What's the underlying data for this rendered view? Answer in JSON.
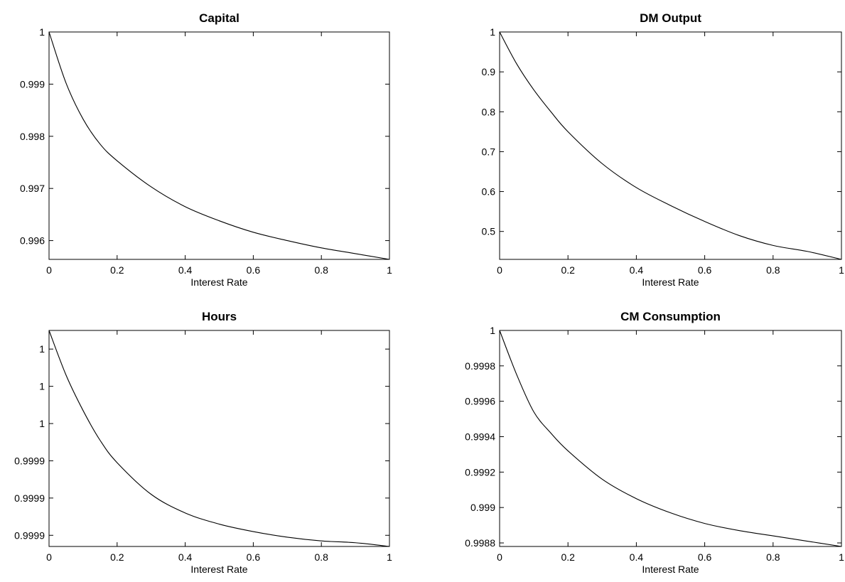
{
  "chart_data": [
    {
      "type": "line",
      "title": "Capital",
      "xlabel": "Interest Rate",
      "ylabel": "",
      "xlim": [
        0,
        1
      ],
      "ylim": [
        0.99564,
        1.0
      ],
      "xticks": [
        0,
        0.2,
        0.4,
        0.6,
        0.8,
        1
      ],
      "xticklabels": [
        "0",
        "0.2",
        "0.4",
        "0.6",
        "0.8",
        "1"
      ],
      "yticks": [
        0.996,
        0.997,
        0.998,
        0.999,
        1.0
      ],
      "yticklabels": [
        "0.996",
        "0.997",
        "0.998",
        "0.999",
        "1"
      ],
      "grid": false,
      "series": [
        {
          "x": [
            0,
            0.05,
            0.1,
            0.15,
            0.2,
            0.3,
            0.4,
            0.5,
            0.6,
            0.7,
            0.8,
            0.9,
            1.0
          ],
          "y": [
            1.0,
            0.99902,
            0.99833,
            0.99785,
            0.99753,
            0.99703,
            0.99665,
            0.99638,
            0.99616,
            0.996,
            0.99586,
            0.99575,
            0.99564
          ]
        }
      ]
    },
    {
      "type": "line",
      "title": "DM Output",
      "xlabel": "Interest Rate",
      "ylabel": "",
      "xlim": [
        0,
        1
      ],
      "ylim": [
        0.43,
        1.0
      ],
      "xticks": [
        0,
        0.2,
        0.4,
        0.6,
        0.8,
        1
      ],
      "xticklabels": [
        "0",
        "0.2",
        "0.4",
        "0.6",
        "0.8",
        "1"
      ],
      "yticks": [
        0.5,
        0.6,
        0.7,
        0.8,
        0.9,
        1.0
      ],
      "yticklabels": [
        "0.5",
        "0.6",
        "0.7",
        "0.8",
        "0.9",
        "1"
      ],
      "grid": false,
      "series": [
        {
          "x": [
            0,
            0.05,
            0.1,
            0.15,
            0.2,
            0.3,
            0.4,
            0.5,
            0.6,
            0.7,
            0.8,
            0.9,
            1.0
          ],
          "y": [
            1.0,
            0.92,
            0.855,
            0.8,
            0.75,
            0.67,
            0.61,
            0.565,
            0.525,
            0.49,
            0.465,
            0.45,
            0.43
          ]
        }
      ]
    },
    {
      "type": "line",
      "title": "Hours",
      "xlabel": "Interest Rate",
      "ylabel": "",
      "xlim": [
        0,
        1
      ],
      "ylim": [
        0.999884,
        1.0
      ],
      "xticks": [
        0,
        0.2,
        0.4,
        0.6,
        0.8,
        1
      ],
      "xticklabels": [
        "0",
        "0.2",
        "0.4",
        "0.6",
        "0.8",
        "1"
      ],
      "yticks": [
        0.99989,
        0.99991,
        0.99993,
        0.99995,
        0.99997,
        0.99999
      ],
      "yticklabels": [
        "0.9999",
        "0.9999",
        "0.9999",
        "1",
        "1",
        "1"
      ],
      "grid": false,
      "series": [
        {
          "x": [
            0,
            0.05,
            0.1,
            0.15,
            0.2,
            0.3,
            0.4,
            0.5,
            0.6,
            0.7,
            0.8,
            0.9,
            1.0
          ],
          "y": [
            1.0,
            0.999976,
            0.999957,
            0.999941,
            0.999929,
            0.999912,
            0.999902,
            0.999896,
            0.999892,
            0.999889,
            0.999887,
            0.999886,
            0.999884
          ]
        }
      ]
    },
    {
      "type": "line",
      "title": "CM Consumption",
      "xlabel": "Interest Rate",
      "ylabel": "",
      "xlim": [
        0,
        1
      ],
      "ylim": [
        0.99878,
        1.0
      ],
      "xticks": [
        0,
        0.2,
        0.4,
        0.6,
        0.8,
        1
      ],
      "xticklabels": [
        "0",
        "0.2",
        "0.4",
        "0.6",
        "0.8",
        "1"
      ],
      "yticks": [
        0.9988,
        0.999,
        0.9992,
        0.9994,
        0.9996,
        0.9998,
        1.0
      ],
      "yticklabels": [
        "0.9988",
        "0.999",
        "0.9992",
        "0.9994",
        "0.9996",
        "0.9998",
        "1"
      ],
      "grid": false,
      "series": [
        {
          "x": [
            0,
            0.05,
            0.1,
            0.15,
            0.2,
            0.3,
            0.4,
            0.5,
            0.6,
            0.7,
            0.8,
            0.9,
            1.0
          ],
          "y": [
            1.0,
            0.99975,
            0.99954,
            0.99942,
            0.99932,
            0.99916,
            0.99905,
            0.99897,
            0.99891,
            0.99887,
            0.99884,
            0.99881,
            0.99878
          ]
        }
      ]
    }
  ]
}
